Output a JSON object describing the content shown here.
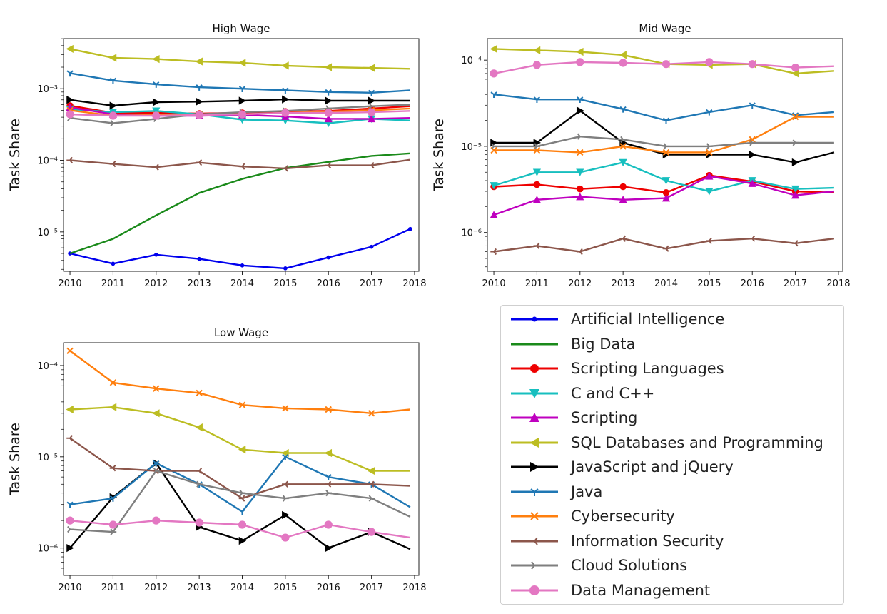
{
  "chart_data": [
    {
      "type": "line",
      "title": "High Wage",
      "ylabel": "Task Share",
      "xlabel": "",
      "x_ticks": [
        "2010",
        "2011",
        "2012",
        "2013",
        "2014",
        "2015",
        "2016",
        "2017",
        "2018"
      ],
      "y_ticks": [
        "10⁻⁵",
        "10⁻⁴",
        "10⁻³"
      ],
      "y_scale": "log",
      "xlim": [
        2009.85,
        2018.1
      ],
      "ylim_log10": [
        -5.55,
        -2.3
      ],
      "x": [
        2010,
        2011,
        2012,
        2013,
        2014,
        2015,
        2016,
        2017,
        2017.9
      ],
      "series": [
        {
          "name": "Artificial Intelligence",
          "values": [
            5e-06,
            3.6e-06,
            4.8e-06,
            4.2e-06,
            3.4e-06,
            3.1e-06,
            4.4e-06,
            6.2e-06,
            1.1e-05
          ]
        },
        {
          "name": "Big Data",
          "values": [
            5e-06,
            8e-06,
            1.7e-05,
            3.5e-05,
            5.5e-05,
            7.8e-05,
            9.5e-05,
            0.000115,
            0.000125
          ]
        },
        {
          "name": "Scripting Languages",
          "values": [
            0.00058,
            0.00046,
            0.00046,
            0.00045,
            0.00046,
            0.00048,
            0.00049,
            0.00053,
            0.00057
          ]
        },
        {
          "name": "C and C++",
          "values": [
            0.00052,
            0.00047,
            0.00049,
            0.00044,
            0.00037,
            0.00036,
            0.00033,
            0.00038,
            0.00036
          ]
        },
        {
          "name": "Scripting",
          "values": [
            0.00055,
            0.00044,
            0.00042,
            0.00042,
            0.00043,
            0.00041,
            0.00038,
            0.00038,
            0.00039
          ]
        },
        {
          "name": "SQL Databases and Programming",
          "values": [
            0.0036,
            0.0027,
            0.0026,
            0.0024,
            0.0023,
            0.0021,
            0.002,
            0.00195,
            0.0019
          ]
        },
        {
          "name": "JavaScript and jQuery",
          "values": [
            0.0007,
            0.00058,
            0.00065,
            0.00066,
            0.00068,
            0.00071,
            0.00068,
            0.00068,
            0.00068
          ]
        },
        {
          "name": "Java",
          "values": [
            0.00165,
            0.0013,
            0.00115,
            0.00105,
            0.001,
            0.00095,
            0.0009,
            0.00088,
            0.00095
          ]
        },
        {
          "name": "Cybersecurity",
          "values": [
            0.0005,
            0.00042,
            0.00043,
            0.00044,
            0.00044,
            0.00046,
            0.00048,
            0.0005,
            0.00053
          ]
        },
        {
          "name": "Information Security",
          "values": [
            0.0001,
            8.9e-05,
            8e-05,
            9.3e-05,
            8.2e-05,
            7.7e-05,
            8.5e-05,
            8.5e-05,
            0.000102
          ]
        },
        {
          "name": "Cloud Solutions",
          "values": [
            0.00039,
            0.00033,
            0.00038,
            0.00044,
            0.00047,
            0.00049,
            0.00053,
            0.00057,
            0.0006
          ]
        },
        {
          "name": "Data Management",
          "values": [
            0.00044,
            0.00042,
            0.00042,
            0.00043,
            0.00044,
            0.00046,
            0.00046,
            0.00047,
            0.00049
          ]
        }
      ]
    },
    {
      "type": "line",
      "title": "Mid Wage",
      "ylabel": "Task Share",
      "xlabel": "",
      "x_ticks": [
        "2010",
        "2011",
        "2012",
        "2013",
        "2014",
        "2015",
        "2016",
        "2017",
        "2018"
      ],
      "y_ticks": [
        "10⁻⁶",
        "10⁻⁵",
        "10⁻⁴"
      ],
      "y_scale": "log",
      "xlim": [
        2009.85,
        2018.1
      ],
      "ylim_log10": [
        -6.45,
        -3.75
      ],
      "x": [
        2010,
        2011,
        2012,
        2013,
        2014,
        2015,
        2016,
        2017,
        2017.9
      ],
      "series": [
        {
          "name": "Scripting Languages",
          "values": [
            3.4e-06,
            3.6e-06,
            3.2e-06,
            3.4e-06,
            2.9e-06,
            4.6e-06,
            3.9e-06,
            3e-06,
            2.9e-06
          ]
        },
        {
          "name": "C and C++",
          "values": [
            3.5e-06,
            5e-06,
            5e-06,
            6.5e-06,
            4e-06,
            3e-06,
            4e-06,
            3.2e-06,
            3.3e-06
          ]
        },
        {
          "name": "Scripting",
          "values": [
            1.6e-06,
            2.4e-06,
            2.6e-06,
            2.4e-06,
            2.5e-06,
            4.5e-06,
            3.7e-06,
            2.7e-06,
            3e-06
          ]
        },
        {
          "name": "SQL Databases and Programming",
          "values": [
            0.000135,
            0.00013,
            0.000125,
            0.000115,
            9e-05,
            8.8e-05,
            9e-05,
            7e-05,
            7.5e-05
          ]
        },
        {
          "name": "JavaScript and jQuery",
          "values": [
            1.1e-05,
            1.1e-05,
            2.6e-05,
            1.1e-05,
            8e-06,
            8e-06,
            8e-06,
            6.5e-06,
            8.5e-06
          ]
        },
        {
          "name": "Java",
          "values": [
            4e-05,
            3.5e-05,
            3.5e-05,
            2.7e-05,
            2e-05,
            2.5e-05,
            3e-05,
            2.3e-05,
            2.5e-05
          ]
        },
        {
          "name": "Cybersecurity",
          "values": [
            9e-06,
            9e-06,
            8.5e-06,
            1e-05,
            8.5e-06,
            8.5e-06,
            1.2e-05,
            2.2e-05,
            2.2e-05
          ]
        },
        {
          "name": "Information Security",
          "values": [
            6e-07,
            7e-07,
            6e-07,
            8.5e-07,
            6.5e-07,
            8e-07,
            8.5e-07,
            7.5e-07,
            8.5e-07
          ]
        },
        {
          "name": "Cloud Solutions",
          "values": [
            1e-05,
            1e-05,
            1.3e-05,
            1.2e-05,
            1e-05,
            1e-05,
            1.1e-05,
            1.1e-05,
            1.1e-05
          ]
        },
        {
          "name": "Data Management",
          "values": [
            7e-05,
            8.8e-05,
            9.5e-05,
            9.3e-05,
            9e-05,
            9.5e-05,
            9e-05,
            8.2e-05,
            8.5e-05
          ]
        }
      ]
    },
    {
      "type": "line",
      "title": "Low Wage",
      "ylabel": "Task Share",
      "xlabel": "",
      "x_ticks": [
        "2010",
        "2011",
        "2012",
        "2013",
        "2014",
        "2015",
        "2016",
        "2017",
        "2018"
      ],
      "y_ticks": [
        "10⁻⁶",
        "10⁻⁵",
        "10⁻⁴"
      ],
      "y_scale": "log",
      "xlim": [
        2009.85,
        2018.1
      ],
      "ylim_log10": [
        -6.3,
        -3.75
      ],
      "x": [
        2010,
        2011,
        2012,
        2013,
        2014,
        2015,
        2016,
        2017,
        2017.9
      ],
      "series": [
        {
          "name": "SQL Databases and Programming",
          "values": [
            3.3e-05,
            3.5e-05,
            3e-05,
            2.1e-05,
            1.2e-05,
            1.1e-05,
            1.1e-05,
            7e-06,
            7e-06
          ]
        },
        {
          "name": "JavaScript and jQuery",
          "values": [
            1e-06,
            3.6e-06,
            8.5e-06,
            1.7e-06,
            1.2e-06,
            2.3e-06,
            1e-06,
            1.5e-06,
            9.7e-07
          ]
        },
        {
          "name": "Java",
          "values": [
            3e-06,
            3.5e-06,
            8.5e-06,
            5e-06,
            2.5e-06,
            1e-05,
            6e-06,
            5e-06,
            2.8e-06
          ]
        },
        {
          "name": "Cybersecurity",
          "values": [
            0.000145,
            6.5e-05,
            5.6e-05,
            5e-05,
            3.7e-05,
            3.4e-05,
            3.3e-05,
            3e-05,
            3.3e-05
          ]
        },
        {
          "name": "Information Security",
          "values": [
            1.6e-05,
            7.5e-06,
            7e-06,
            7e-06,
            3.5e-06,
            5e-06,
            5e-06,
            5e-06,
            4.8e-06
          ]
        },
        {
          "name": "Cloud Solutions",
          "values": [
            1.6e-06,
            1.5e-06,
            7e-06,
            5e-06,
            4e-06,
            3.5e-06,
            4e-06,
            3.5e-06,
            2.2e-06
          ]
        },
        {
          "name": "Data Management",
          "values": [
            2e-06,
            1.8e-06,
            2e-06,
            1.9e-06,
            1.8e-06,
            1.3e-06,
            1.8e-06,
            1.5e-06,
            1.3e-06
          ]
        }
      ]
    }
  ],
  "styles": {
    "Artificial Intelligence": {
      "color": "#0000ee",
      "marker": "circle-small"
    },
    "Big Data": {
      "color": "#1a8a1a",
      "marker": "none"
    },
    "Scripting Languages": {
      "color": "#ee0000",
      "marker": "circle"
    },
    "C and C++": {
      "color": "#17bfbf",
      "marker": "triangle-down"
    },
    "Scripting": {
      "color": "#bf00bf",
      "marker": "triangle-up"
    },
    "SQL Databases and Programming": {
      "color": "#bcbd22",
      "marker": "triangle-left"
    },
    "JavaScript and jQuery": {
      "color": "#000000",
      "marker": "triangle-right"
    },
    "Java": {
      "color": "#1f77b4",
      "marker": "tri-down"
    },
    "Cybersecurity": {
      "color": "#ff7f0e",
      "marker": "x"
    },
    "Information Security": {
      "color": "#8c564b",
      "marker": "tri-left"
    },
    "Cloud Solutions": {
      "color": "#7f7f7f",
      "marker": "tri-right"
    },
    "Data Management": {
      "color": "#e377c2",
      "marker": "circle-big"
    }
  },
  "legend": {
    "position": "lower-right",
    "items": [
      "Artificial Intelligence",
      "Big Data",
      "Scripting Languages",
      "C and C++",
      "Scripting",
      "SQL Databases and Programming",
      "JavaScript and jQuery",
      "Java",
      "Cybersecurity",
      "Information Security",
      "Cloud Solutions",
      "Data Management"
    ]
  }
}
